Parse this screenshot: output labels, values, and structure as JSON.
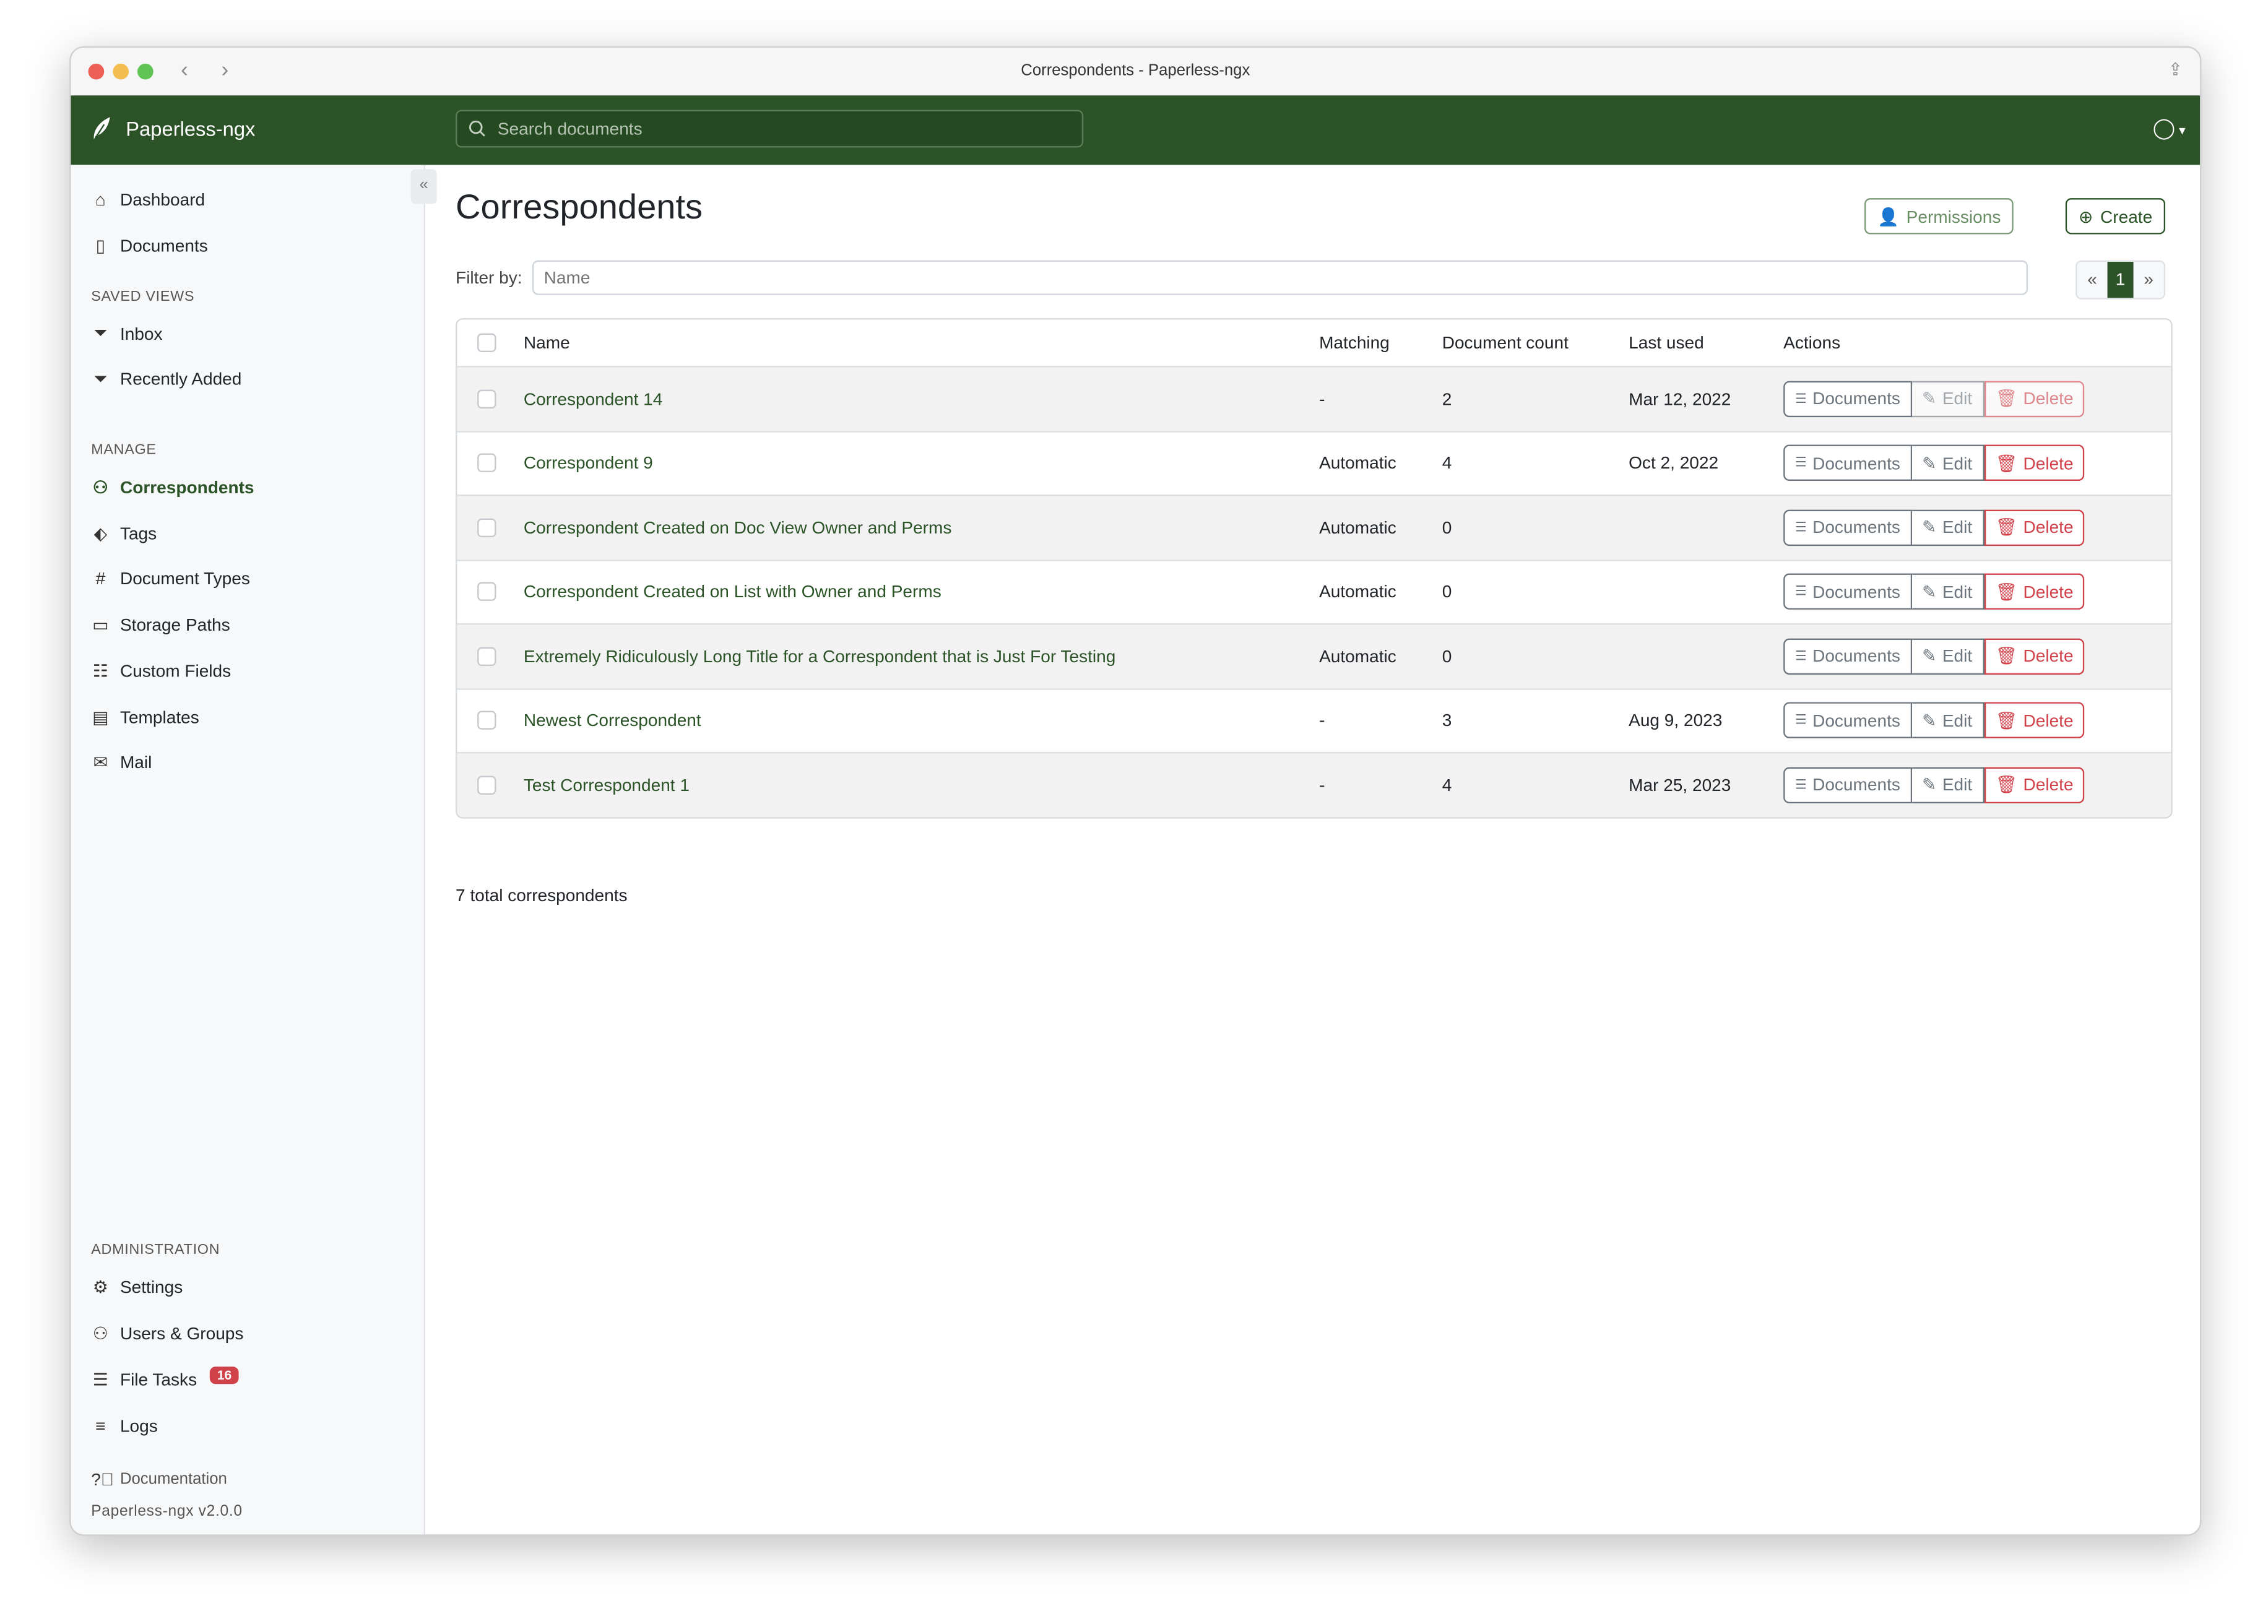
{
  "window": {
    "title": "Correspondents - Paperless-ngx"
  },
  "header": {
    "brand": "Paperless-ngx",
    "search_placeholder": "Search documents"
  },
  "sidebar": {
    "items": [
      {
        "label": "Dashboard",
        "icon": "house-icon"
      },
      {
        "label": "Documents",
        "icon": "files-icon"
      }
    ],
    "saved_views_heading": "SAVED VIEWS",
    "saved_views": [
      {
        "label": "Inbox",
        "icon": "funnel-icon"
      },
      {
        "label": "Recently Added",
        "icon": "funnel-icon"
      }
    ],
    "manage_heading": "MANAGE",
    "manage": [
      {
        "label": "Correspondents",
        "icon": "person-icon",
        "active": true
      },
      {
        "label": "Tags",
        "icon": "tags-icon"
      },
      {
        "label": "Document Types",
        "icon": "hash-icon"
      },
      {
        "label": "Storage Paths",
        "icon": "folder-icon"
      },
      {
        "label": "Custom Fields",
        "icon": "ui-radios-icon"
      },
      {
        "label": "Templates",
        "icon": "file-text-icon"
      },
      {
        "label": "Mail",
        "icon": "envelope-icon"
      }
    ],
    "admin_heading": "ADMINISTRATION",
    "admin": [
      {
        "label": "Settings",
        "icon": "gear-icon"
      },
      {
        "label": "Users & Groups",
        "icon": "people-icon"
      },
      {
        "label": "File Tasks",
        "icon": "list-task-icon",
        "badge": "16"
      },
      {
        "label": "Logs",
        "icon": "text-left-icon"
      }
    ],
    "documentation": "Documentation",
    "version": "Paperless-ngx v2.0.0"
  },
  "main": {
    "title": "Correspondents",
    "permissions_label": "Permissions",
    "create_label": "Create",
    "filter_label": "Filter by:",
    "filter_placeholder": "Name",
    "pagination": {
      "prev": "«",
      "current": "1",
      "next": "»"
    },
    "table": {
      "headers": {
        "name": "Name",
        "matching": "Matching",
        "count": "Document count",
        "last_used": "Last used",
        "actions": "Actions"
      },
      "action_labels": {
        "documents": "Documents",
        "edit": "Edit",
        "delete": "Delete"
      },
      "rows": [
        {
          "name": "Correspondent 14",
          "matching": "-",
          "count": "2",
          "last_used": "Mar 12, 2022",
          "actions_disabled": true
        },
        {
          "name": "Correspondent 9",
          "matching": "Automatic",
          "count": "4",
          "last_used": "Oct 2, 2022"
        },
        {
          "name": "Correspondent Created on Doc View Owner and Perms",
          "matching": "Automatic",
          "count": "0",
          "last_used": ""
        },
        {
          "name": "Correspondent Created on List with Owner and Perms",
          "matching": "Automatic",
          "count": "0",
          "last_used": ""
        },
        {
          "name": "Extremely Ridiculously Long Title for a Correspondent that is Just For Testing",
          "matching": "Automatic",
          "count": "0",
          "last_used": ""
        },
        {
          "name": "Newest Correspondent",
          "matching": "-",
          "count": "3",
          "last_used": "Aug 9, 2023"
        },
        {
          "name": "Test Correspondent 1",
          "matching": "-",
          "count": "4",
          "last_used": "Mar 25, 2023"
        }
      ]
    },
    "total": "7 total correspondents"
  },
  "colors": {
    "brand": "#2b5327",
    "danger": "#d0414a",
    "secondary": "#6c757d"
  }
}
